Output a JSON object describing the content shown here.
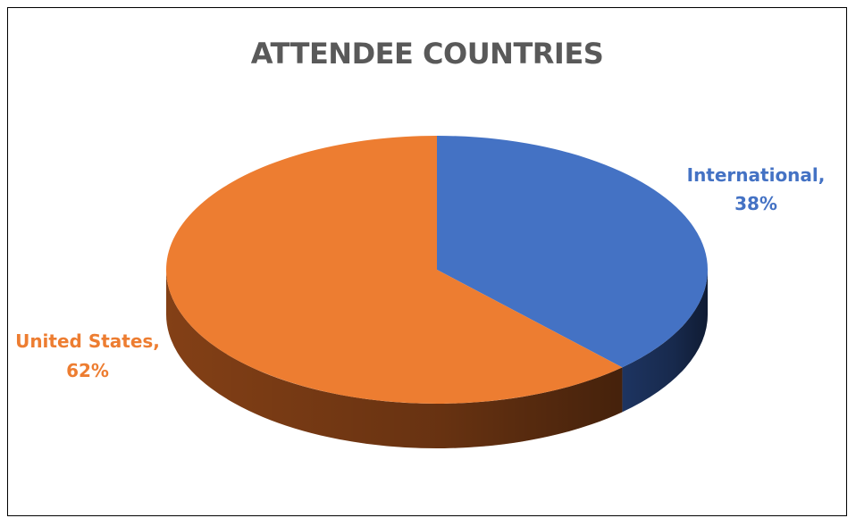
{
  "chart_data": {
    "type": "pie",
    "title": "ATTENDEE COUNTRIES",
    "slices": [
      {
        "name": "International",
        "value": 38,
        "color": "#4472C4",
        "side_color": "#1F3766",
        "label_line1": "International,",
        "label_line2": "38%"
      },
      {
        "name": "United States",
        "value": 62,
        "color": "#ED7D31",
        "side_color": "#8A4317",
        "label_line1": "United States,",
        "label_line2": "62%"
      }
    ],
    "start_angle_deg": 0,
    "direction": "clockwise",
    "style": "3d",
    "legend": "none"
  }
}
